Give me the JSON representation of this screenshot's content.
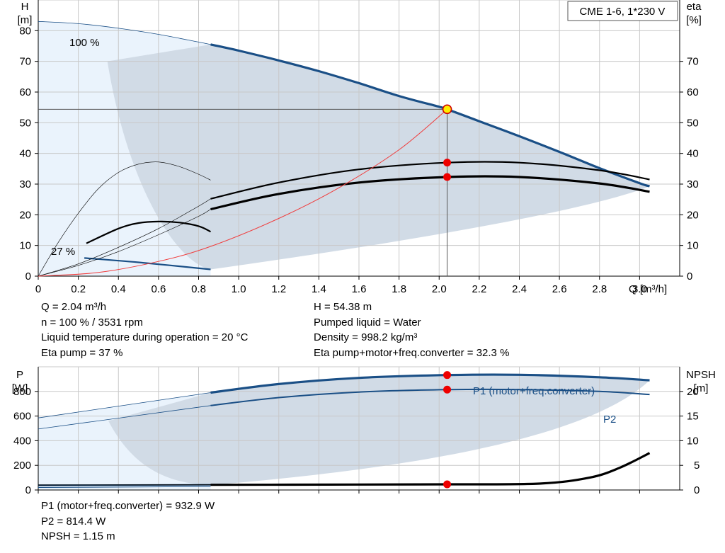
{
  "model_label": "CME 1-6, 1*230 V",
  "colors": {
    "curve_blue": "#1a4f86",
    "fill_light": "#eaf3fc",
    "fill_dark": "#d1dbe6",
    "system_curve": "#f03c3c",
    "marker_red": "#ee0000",
    "marker_yellow": "#ffee00"
  },
  "info_top_left": [
    "Q = 2.04 m³/h",
    "n = 100 % / 3531 rpm",
    "Liquid temperature during operation = 20 °C",
    "Eta pump = 37 %"
  ],
  "info_top_right": [
    "H = 54.38 m",
    "Pumped liquid = Water",
    "Density = 998.2 kg/m³",
    "Eta pump+motor+freq.converter = 32.3 %"
  ],
  "info_bottom": [
    "P1 (motor+freq.converter) = 932.9 W",
    "P2 = 814.4 W",
    "NPSH = 1.15 m"
  ],
  "chart_data": [
    {
      "type": "line",
      "panel": "head-efficiency",
      "xlabel": "Q [m³/h]",
      "ylabel": "H [m]",
      "ylabel_parts": [
        "H",
        "[m]"
      ],
      "y2label": "eta [%]",
      "y2label_parts": [
        "eta",
        "[%]"
      ],
      "xlim": [
        0,
        3.2
      ],
      "ylim": [
        0,
        90
      ],
      "y2lim": [
        0,
        90
      ],
      "x_ticks": [
        0,
        0.2,
        0.4,
        0.6,
        0.8,
        1.0,
        1.2,
        1.4,
        1.6,
        1.8,
        2.0,
        2.2,
        2.4,
        2.6,
        2.8,
        3.0
      ],
      "x_tick_labels": [
        "0",
        "0.2",
        "0.4",
        "0.6",
        "0.8",
        "1.0",
        "1.2",
        "1.4",
        "1.6",
        "1.8",
        "2.0",
        "2.2",
        "2.4",
        "2.6",
        "2.8",
        "3.0"
      ],
      "y_ticks": [
        0,
        10,
        20,
        30,
        40,
        50,
        60,
        70,
        80
      ],
      "y_tick_labels": [
        "0",
        "10",
        "20",
        "30",
        "40",
        "50",
        "60",
        "70",
        "80"
      ],
      "y2_ticks": [
        0,
        10,
        20,
        30,
        40,
        50,
        60,
        70
      ],
      "y2_tick_labels": [
        "0",
        "10",
        "20",
        "30",
        "40",
        "50",
        "60",
        "70"
      ],
      "grid": true,
      "curve_labels": [
        "100 %",
        "27 %"
      ],
      "series": [
        {
          "name": "100 %",
          "x": [
            0,
            0.2,
            0.4,
            0.6,
            0.8,
            0.86,
            1.0,
            1.2,
            1.4,
            1.6,
            1.8,
            2.0,
            2.04,
            2.2,
            2.4,
            2.6,
            2.8,
            3.0,
            3.05
          ],
          "y": [
            83,
            82.3,
            80.8,
            78.8,
            76.3,
            75.5,
            73.5,
            70.3,
            66.8,
            62.9,
            58.7,
            55.2,
            54.38,
            50.5,
            45.6,
            40.5,
            35.2,
            30.3,
            29.3
          ]
        },
        {
          "name": "27 %",
          "x": [
            0.23,
            0.5,
            0.86
          ],
          "y": [
            5.9,
            4.5,
            2.2
          ]
        },
        {
          "x": [
            0,
            0.2,
            0.4,
            0.6,
            0.8,
            0.86,
            1.2,
            1.6,
            2.04,
            2.4,
            2.8,
            3.05
          ],
          "y": [
            0,
            4,
            9.4,
            15.5,
            22.8,
            25.2,
            30.5,
            34.8,
            37.0,
            37.0,
            34.5,
            31.5
          ]
        },
        {
          "x": [
            0,
            0.2,
            0.4,
            0.6,
            0.8,
            0.86,
            1.2,
            1.6,
            2.04,
            2.4,
            2.8,
            3.05
          ],
          "y": [
            0,
            3.5,
            8,
            13.5,
            19.5,
            21.8,
            26.8,
            30.5,
            32.3,
            32.3,
            30.2,
            27.5
          ]
        },
        {
          "x": [
            0,
            0.1,
            0.2,
            0.3,
            0.4,
            0.5,
            0.6,
            0.7,
            0.8,
            0.86
          ],
          "y": [
            0,
            11,
            20.5,
            28.5,
            33.8,
            36.5,
            37.2,
            35.8,
            33.2,
            31.3
          ]
        },
        {
          "x": [
            0.24,
            0.4,
            0.5,
            0.6,
            0.7,
            0.8,
            0.86
          ],
          "y": [
            10.7,
            15.5,
            17.3,
            17.8,
            17.5,
            16.3,
            14.5
          ]
        },
        {
          "x": [
            0,
            0.3,
            0.6,
            0.86,
            1.2,
            1.5,
            1.8,
            2.04
          ],
          "y": [
            0,
            1.2,
            4.8,
            9.7,
            18.8,
            28.8,
            41.2,
            54.38
          ]
        }
      ],
      "duty_point": {
        "x": 2.04,
        "y": 54.38
      },
      "efficiency_points": [
        37.0,
        32.3
      ]
    },
    {
      "type": "line",
      "panel": "power-npsh",
      "xlabel": "",
      "ylabel": "P [W]",
      "ylabel_parts": [
        "P",
        "[W]"
      ],
      "y2label": "NPSH [m]",
      "y2label_parts": [
        "NPSH",
        "[m]"
      ],
      "xlim": [
        0,
        3.2
      ],
      "ylim": [
        0,
        1000
      ],
      "y2lim": [
        0,
        25
      ],
      "y_ticks": [
        0,
        200,
        400,
        600,
        800
      ],
      "y_tick_labels": [
        "0",
        "200",
        "400",
        "600",
        "800"
      ],
      "y2_ticks": [
        0,
        5,
        10,
        15,
        20
      ],
      "y2_tick_labels": [
        "0",
        "5",
        "10",
        "15",
        "20"
      ],
      "grid": true,
      "series": [
        {
          "name": "P1 (motor+freq.converter)",
          "x": [
            0,
            0.86,
            1.2,
            1.6,
            2.04,
            2.4,
            2.8,
            3.05
          ],
          "y": [
            585,
            790,
            860,
            910,
            932.9,
            935,
            915,
            890
          ]
        },
        {
          "name": "P2",
          "x": [
            0,
            0.86,
            1.2,
            1.6,
            2.04,
            2.4,
            2.8,
            3.05
          ],
          "y": [
            495,
            685,
            750,
            795,
            814.4,
            815,
            800,
            775
          ]
        },
        {
          "x": [
            0,
            0.86,
            1.6,
            2.04,
            2.5,
            2.75,
            2.9,
            3.05
          ],
          "y": [
            1.0,
            1.05,
            1.1,
            1.15,
            1.3,
            2.5,
            4.5,
            7.5
          ]
        }
      ],
      "duty_point": {
        "x": 2.04,
        "P1": 932.9,
        "P2": 814.4,
        "NPSH": 1.15
      }
    }
  ]
}
